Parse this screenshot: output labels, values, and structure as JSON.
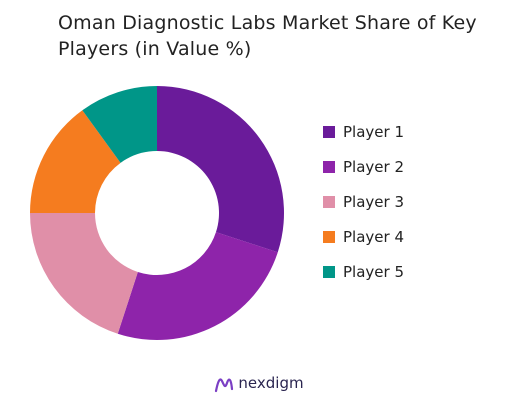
{
  "chart_data": {
    "type": "pie",
    "title": "Oman Diagnostic Labs Market Share of Key Players (in Value %)",
    "donut": true,
    "legend_position": "right",
    "categories": [
      "Player 1",
      "Player 2",
      "Player 3",
      "Player 4",
      "Player 5"
    ],
    "values": [
      30,
      25,
      20,
      15,
      10
    ],
    "colors": [
      "#6a1b9a",
      "#8e24aa",
      "#e08fa8",
      "#f57c1f",
      "#009688"
    ]
  },
  "brand": {
    "name": "nexdigm",
    "logo_icon": "nexdigm-logo-icon",
    "logo_color": "#7b3fc4"
  }
}
